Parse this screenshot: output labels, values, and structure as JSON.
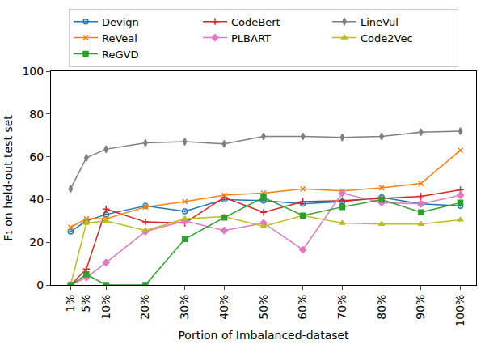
{
  "chart_data": {
    "type": "line",
    "x_label": "Portion of Imbalanced-dataset",
    "y_label": "F₁ on held-out test set",
    "x": [
      1,
      5,
      10,
      20,
      30,
      40,
      50,
      60,
      70,
      80,
      90,
      100
    ],
    "xlim": [
      -4,
      104
    ],
    "xticks": [
      {
        "value": 1,
        "label": "1%"
      },
      {
        "value": 5,
        "label": "5%"
      },
      {
        "value": 10,
        "label": "10%"
      },
      {
        "value": 20,
        "label": "20%"
      },
      {
        "value": 30,
        "label": "30%"
      },
      {
        "value": 40,
        "label": "40%"
      },
      {
        "value": 50,
        "label": "50%"
      },
      {
        "value": 60,
        "label": "60%"
      },
      {
        "value": 70,
        "label": "70%"
      },
      {
        "value": 80,
        "label": "80%"
      },
      {
        "value": 90,
        "label": "90%"
      },
      {
        "value": 100,
        "label": "100%"
      }
    ],
    "ylim": [
      0,
      100
    ],
    "yticks": [
      0,
      20,
      40,
      60,
      80,
      100
    ],
    "grid": false,
    "legend": "top",
    "series": [
      {
        "name": "Devign",
        "color": "#1f77b4",
        "marker": "circle_dot",
        "values": [
          25,
          30,
          33,
          37,
          34.5,
          40,
          39.5,
          38,
          39,
          41,
          38,
          37
        ]
      },
      {
        "name": "CodeBert",
        "color": "#d62728",
        "marker": "plus",
        "values": [
          0,
          7.5,
          35.5,
          29.5,
          29,
          41,
          34,
          39,
          39.5,
          40.5,
          41.5,
          44.5
        ]
      },
      {
        "name": "LineVul",
        "color": "#7f7f7f",
        "marker": "thin_diamond",
        "values": [
          45,
          59.5,
          63.5,
          66.5,
          67,
          66,
          69.5,
          69.5,
          69,
          69.5,
          71.5,
          72
        ]
      },
      {
        "name": "ReVeal",
        "color": "#ff7f0e",
        "marker": "x",
        "values": [
          27,
          31,
          31,
          36.5,
          39,
          42,
          43,
          45,
          44,
          45.5,
          47.5,
          63
        ]
      },
      {
        "name": "PLBART",
        "color": "#e377c2",
        "marker": "diamond",
        "values": [
          0,
          3.5,
          10.5,
          25,
          30,
          25.5,
          29,
          16.5,
          43,
          38.5,
          38,
          42
        ]
      },
      {
        "name": "Code2Vec",
        "color": "#bcbd22",
        "marker": "triangle",
        "values": [
          0,
          29,
          30,
          25.5,
          31,
          32,
          27.5,
          32.5,
          29,
          28.5,
          28.5,
          30.5
        ]
      },
      {
        "name": "ReGVD",
        "color": "#2ca02c",
        "marker": "square",
        "values": [
          0,
          5,
          0,
          0,
          21.5,
          31.5,
          41,
          32.5,
          36.5,
          40,
          34,
          38.5
        ]
      }
    ]
  }
}
